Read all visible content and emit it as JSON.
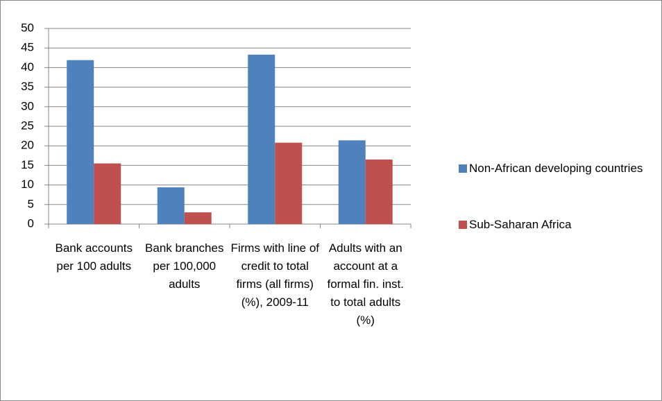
{
  "chart_data": {
    "type": "bar",
    "categories": [
      "Bank accounts per 100 adults",
      "Bank branches per 100,000 adults",
      "Firms with line of credit to total firms (all firms) (%), 2009-11",
      "Adults with an account at a formal fin. inst. to total adults (%)"
    ],
    "series": [
      {
        "name": "Non-African developing countries",
        "color": "#4f81bd",
        "values": [
          41.9,
          9.4,
          43.3,
          21.4
        ]
      },
      {
        "name": "Sub-Saharan Africa",
        "color": "#c0504d",
        "values": [
          15.5,
          3.0,
          20.8,
          16.5
        ]
      }
    ],
    "ylim": [
      0,
      50
    ],
    "yticks": [
      0,
      5,
      10,
      15,
      20,
      25,
      30,
      35,
      40,
      45,
      50
    ],
    "grid": true,
    "legend": "right"
  }
}
